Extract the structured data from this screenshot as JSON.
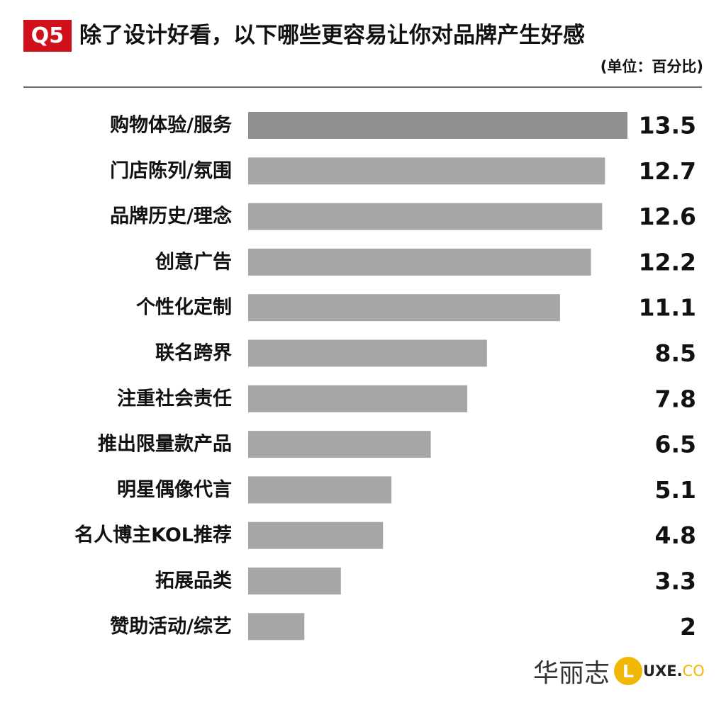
{
  "header": {
    "badge": "Q5",
    "title": "除了设计好看，以下哪些更容易让你对品牌产生好感",
    "unit": "(单位：百分比)"
  },
  "colors": {
    "badge": "#d0111b",
    "bar_top": "#909090",
    "bar": "#a6a6a6",
    "brand_dot": "#f2b705",
    "brand_co": "#f2b705"
  },
  "chart_data": {
    "type": "bar",
    "orientation": "horizontal",
    "categories": [
      "购物体验/服务",
      "门店陈列/氛围",
      "品牌历史/理念",
      "创意广告",
      "个性化定制",
      "联名跨界",
      "注重社会责任",
      "推出限量款产品",
      "明星偶像代言",
      "名人博主KOL推荐",
      "拓展品类",
      "赞助活动/综艺"
    ],
    "values": [
      13.5,
      12.7,
      12.6,
      12.2,
      11.1,
      8.5,
      7.8,
      6.5,
      5.1,
      4.8,
      3.3,
      2
    ],
    "value_labels": [
      "13.5",
      "12.7",
      "12.6",
      "12.2",
      "11.1",
      "8.5",
      "7.8",
      "6.5",
      "5.1",
      "4.8",
      "3.3",
      "2"
    ],
    "title": "除了设计好看，以下哪些更容易让你对品牌产生好感",
    "xlabel": "",
    "ylabel": "",
    "grid": false,
    "legend": "none"
  },
  "brand": {
    "cn": "华丽志",
    "dot_letter": "L",
    "ux": "UXE.",
    "co": "CO"
  }
}
